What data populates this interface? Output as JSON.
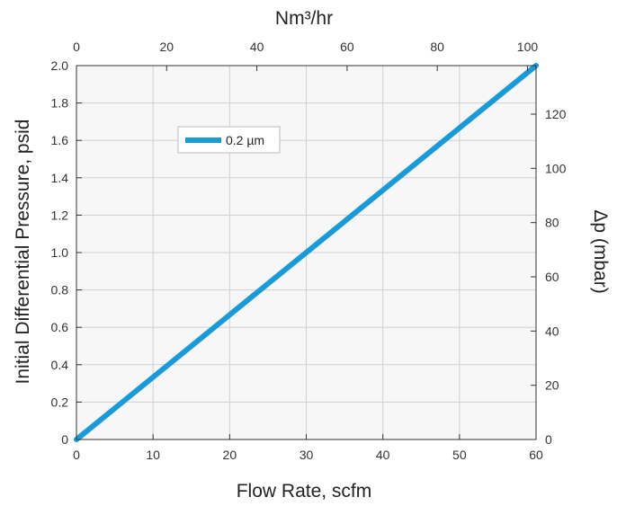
{
  "chart_data": {
    "type": "line",
    "title": "",
    "xlabel": "Flow Rate, scfm",
    "ylabel": "Initial Differential Pressure, psid",
    "x2label": "Nm³/hr",
    "y2label": "Δp (mbar)",
    "xlim": [
      0,
      60
    ],
    "ylim": [
      0,
      2.0
    ],
    "x2lim": [
      0,
      101.9
    ],
    "y2lim": [
      0,
      137.9
    ],
    "x_ticks": [
      "0",
      "10",
      "20",
      "30",
      "40",
      "50",
      "60"
    ],
    "y_ticks": [
      "0",
      "0.2",
      "0.4",
      "0.6",
      "0.8",
      "1.0",
      "1.2",
      "1.4",
      "1.6",
      "1.8",
      "2.0"
    ],
    "x2_ticks": [
      "0",
      "20",
      "40",
      "60",
      "80",
      "100"
    ],
    "y2_ticks": [
      "0",
      "20",
      "40",
      "60",
      "80",
      "100",
      "120"
    ],
    "grid": true,
    "legend_position": "upper-left",
    "series": [
      {
        "name": "0.2  µm",
        "color": "#1a9ad6",
        "x": [
          0,
          60
        ],
        "y": [
          0,
          2.0
        ]
      }
    ]
  }
}
